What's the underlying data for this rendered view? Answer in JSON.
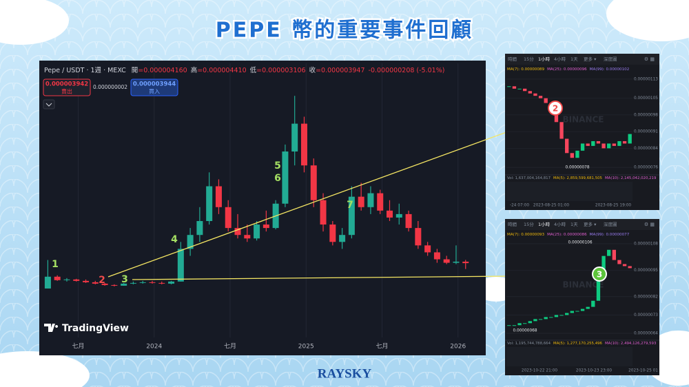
{
  "title": "PEPE 幣的重要事件回顧",
  "brand": "RAYSKY",
  "chart_data": [
    {
      "type": "candlestick",
      "symbol": "Pepe / USDT · 1週 · MEXC",
      "ohlc": [
        {
          "label": "開",
          "value": "=0.000004160"
        },
        {
          "label": "高",
          "value": "=0.000004410"
        },
        {
          "label": "低",
          "value": "=0.000003106"
        },
        {
          "label": "收",
          "value": "=0.000003947"
        }
      ],
      "change": "-0.000000208 (-5.01%)",
      "sell": {
        "price": "0.000003942",
        "label": "賣出"
      },
      "spread": "0.000000002",
      "buy": {
        "price": "0.000003944",
        "label": "買入"
      },
      "logo": "TradingView",
      "x": [
        2023.3,
        2023.3625,
        2023.425,
        2023.4875,
        2023.55,
        2023.6125,
        2023.675,
        2023.7375,
        2023.8,
        2023.8625,
        2023.925,
        2023.9875,
        2024.05,
        2024.1125,
        2024.175,
        2024.2375,
        2024.3,
        2024.3625,
        2024.425,
        2024.4875,
        2024.55,
        2024.6125,
        2024.675,
        2024.7375,
        2024.8,
        2024.8625,
        2024.925,
        2024.9875,
        2025.05,
        2025.1125,
        2025.175,
        2025.2375,
        2025.3,
        2025.3625,
        2025.425,
        2025.4875,
        2025.55,
        2025.6125,
        2025.675,
        2025.7375,
        2025.8,
        2025.8625,
        2025.925,
        2025.9875,
        2026.05
      ],
      "open": [
        3e-07,
        2e-06,
        1.5e-06,
        1.6e-06,
        1.4e-06,
        1.2e-06,
        1e-06,
        8e-07,
        7e-07,
        1e-06,
        1.1e-06,
        1.2e-06,
        1.1e-06,
        1e-06,
        1.3e-06,
        6e-06,
        8e-06,
        1e-05,
        1.5e-05,
        1.2e-05,
        9e-06,
        8e-06,
        7.5e-06,
        9.5e-06,
        9e-06,
        1.25e-05,
        2e-05,
        2.4e-05,
        1.8e-05,
        1.3e-05,
        9.5e-06,
        7e-06,
        8e-06,
        1.35e-05,
        1.2e-05,
        1.4e-05,
        1.15e-05,
        1.05e-05,
        1.1e-05,
        9e-06,
        6.5e-06,
        5.5e-06,
        4.5e-06,
        4e-06,
        4.16e-06
      ],
      "high": [
        4.4e-06,
        2.2e-06,
        1.8e-06,
        1.7e-06,
        1.6e-06,
        1.4e-06,
        1.1e-06,
        9e-07,
        1.1e-06,
        1.3e-06,
        1.4e-06,
        1.4e-06,
        1.3e-06,
        1.4e-06,
        7e-06,
        9e-06,
        1.2e-05,
        1.7e-05,
        1.6e-05,
        1.3e-05,
        1.1e-05,
        9.5e-06,
        1e-05,
        1.15e-05,
        1.3e-05,
        2.1e-05,
        2.8e-05,
        2.5e-05,
        1.9e-05,
        1.4e-05,
        1e-05,
        9e-06,
        1.5e-05,
        1.55e-05,
        1.5e-05,
        1.45e-05,
        1.3e-05,
        1.25e-05,
        1.15e-05,
        1e-05,
        7e-06,
        6e-06,
        5e-06,
        6.5e-06,
        4.41e-06
      ],
      "low": [
        3e-07,
        1.4e-06,
        1.3e-06,
        1.3e-06,
        1.1e-06,
        9e-07,
        7e-07,
        6e-07,
        7e-07,
        9e-07,
        1e-06,
        1e-06,
        9e-07,
        9e-07,
        1.3e-06,
        5e-06,
        7e-06,
        9.5e-06,
        1.1e-05,
        8.5e-06,
        7.5e-06,
        7e-06,
        7.2e-06,
        8.5e-06,
        8.8e-06,
        1.2e-05,
        1.8e-05,
        1.7e-05,
        1.2e-05,
        8.5e-06,
        6.5e-06,
        6e-06,
        7.5e-06,
        1.15e-05,
        1.1e-05,
        1.1e-05,
        1e-05,
        9.5e-06,
        8.5e-06,
        6e-06,
        5e-06,
        4e-06,
        3.8e-06,
        3.8e-06,
        3.106e-06
      ],
      "close": [
        2e-06,
        1.5e-06,
        1.6e-06,
        1.4e-06,
        1.2e-06,
        1e-06,
        8e-07,
        7e-07,
        1e-06,
        1.1e-06,
        1.2e-06,
        1.1e-06,
        1e-06,
        1.3e-06,
        6e-06,
        8e-06,
        1e-05,
        1.5e-05,
        1.2e-05,
        9e-06,
        8e-06,
        7.5e-06,
        9.5e-06,
        9e-06,
        1.25e-05,
        2e-05,
        2.4e-05,
        1.8e-05,
        1.3e-05,
        9.5e-06,
        7e-06,
        8e-06,
        1.35e-05,
        1.2e-05,
        1.4e-05,
        1.15e-05,
        1.05e-05,
        1.1e-05,
        9e-06,
        6.5e-06,
        5.5e-06,
        4.5e-06,
        4e-06,
        4.16e-06,
        3.947e-06
      ],
      "xlim": [
        2023.28,
        2026.16
      ],
      "xticks": [
        {
          "value": 2023.5,
          "label": "七月"
        },
        2024,
        {
          "value": 2024.5,
          "label": "七月"
        },
        2025,
        {
          "value": 2025.5,
          "label": "七月"
        },
        2026
      ],
      "ylim": [
        0,
        3e-05
      ],
      "grid": true,
      "up_color": "#22ab94",
      "down_color": "#f23645",
      "annotations": [
        {
          "text": "1",
          "color": "#a5e063"
        },
        {
          "text": "2",
          "color": "#f04b4b"
        },
        {
          "text": "3",
          "color": "#a5e063"
        },
        {
          "text": "4",
          "color": "#a5e063"
        },
        {
          "text": "5",
          "color": "#a5e063"
        },
        {
          "text": "6",
          "color": "#a5e063"
        },
        {
          "text": "7",
          "color": "#a5e063"
        }
      ]
    },
    {
      "type": "candlestick",
      "toolbar": [
        "時間",
        "15分",
        "1小時",
        "4小時",
        "1天",
        "更多 ▾",
        "深度圖"
      ],
      "ma": [
        {
          "text": "MA(7): 0.00000089",
          "color": "#f0b90b"
        },
        {
          "text": "MA(25): 0.00000096",
          "color": "#e05fd0"
        },
        {
          "text": "MA(99): 0.00000102",
          "color": "#9a7cf0"
        }
      ],
      "close": [
        1.1e-06,
        1.09e-06,
        1.09e-06,
        1.08e-06,
        1.07e-06,
        1.06e-06,
        1.05e-06,
        1.03e-06,
        1e-06,
        9.5e-07,
        8.8e-07,
        8.2e-07,
        8e-07,
        8.3e-07,
        8.6e-07,
        8.5e-07,
        8.7e-07,
        8.6e-07,
        8.4e-07,
        8.6e-07,
        8.5e-07,
        8.7e-07,
        8.6e-07,
        9e-07
      ],
      "ylim": [
        7.4e-07,
        1.15e-06
      ],
      "yticks": [
        {
          "value": 1.13e-06,
          "label": "0.00000113"
        },
        {
          "value": 1.05e-06,
          "label": "0.00000105"
        },
        {
          "value": 9.8e-07,
          "label": "0.00000098"
        },
        {
          "value": 9.1e-07,
          "label": "0.00000091"
        },
        {
          "value": 8.4e-07,
          "label": "0.00000084"
        },
        {
          "value": 7.6e-07,
          "label": "0.00000076"
        }
      ],
      "markers": [
        "0.00000078"
      ],
      "volume": "Vol: 1,637,004,164,817",
      "volume_ma": [
        {
          "text": "MA(5): 2,859,599,681,505",
          "color": "#f0b90b"
        },
        {
          "text": "MA(10): 2,145,042,020,219",
          "color": "#e05fd0"
        }
      ],
      "xlabels": [
        "-24 07:00",
        "2023-08-25 01:00",
        "2023-08-25 19:00"
      ],
      "watermark": "BINANCE",
      "event": {
        "text": "2",
        "color": "#f04b4b"
      },
      "up_color": "#0ecb81",
      "down_color": "#f6465d"
    },
    {
      "type": "candlestick",
      "toolbar": [
        "時間",
        "15分",
        "1小時",
        "4小時",
        "1天",
        "更多 ▾",
        "深度圖"
      ],
      "ma": [
        {
          "text": "MA(7): 0.00000093",
          "color": "#f0b90b"
        },
        {
          "text": "MA(25): 0.00000086",
          "color": "#e05fd0"
        },
        {
          "text": "MA(99): 0.00000077",
          "color": "#9a7cf0"
        }
      ],
      "close": [
        6.8e-07,
        6.8e-07,
        6.9e-07,
        6.9e-07,
        7e-07,
        7.1e-07,
        7.1e-07,
        7.2e-07,
        7.2e-07,
        7.3e-07,
        7.3e-07,
        7.4e-07,
        7.5e-07,
        7.5e-07,
        7.6e-07,
        7.7e-07,
        8e-07,
        9.5e-07,
        1.02e-06,
        1.05e-06,
        1e-06,
        9.8e-07,
        9.7e-07,
        9.6e-07
      ],
      "ylim": [
        6.2e-07,
        1.1e-06
      ],
      "yticks": [
        {
          "value": 1.08e-06,
          "label": "0.00000108"
        },
        {
          "value": 9.5e-07,
          "label": "0.00000095"
        },
        {
          "value": 8.2e-07,
          "label": "0.00000082"
        },
        {
          "value": 7.3e-07,
          "label": "0.00000073"
        },
        {
          "value": 6.4e-07,
          "label": "0.00000064"
        }
      ],
      "markers": [
        "0.00000106",
        "0.00000068"
      ],
      "volume": "Vol: 1,195,744,788,664",
      "volume_ma": [
        {
          "text": "MA(5): 1,277,170,255,496",
          "color": "#f0b90b"
        },
        {
          "text": "MA(10): 2,494,126,279,593",
          "color": "#e05fd0"
        }
      ],
      "xlabels": [
        "2023-10-22 21:00",
        "2023-10-23 23:00",
        "2023-10-25 01"
      ],
      "watermark": "BINANCE",
      "event": {
        "text": "3",
        "color": "#5cc43a"
      },
      "up_color": "#0ecb81",
      "down_color": "#f6465d"
    }
  ]
}
